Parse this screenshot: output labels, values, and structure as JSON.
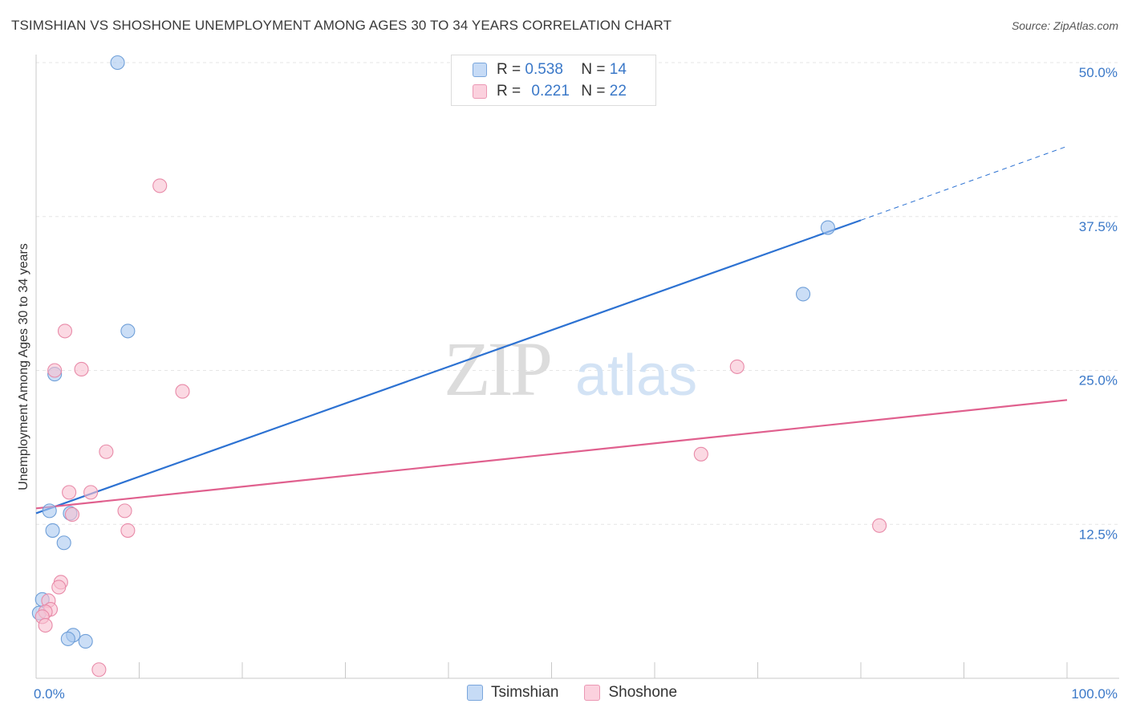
{
  "chart_data": {
    "type": "scatter",
    "title": "TSIMSHIAN VS SHOSHONE UNEMPLOYMENT AMONG AGES 30 TO 34 YEARS CORRELATION CHART",
    "source": "Source: ZipAtlas.com",
    "xlabel": "",
    "ylabel": "Unemployment Among Ages 30 to 34 years",
    "xlim": [
      0,
      100
    ],
    "ylim": [
      0,
      50
    ],
    "x_tick_labels": [
      "0.0%",
      "100.0%"
    ],
    "y_ticks": [
      12.5,
      25.0,
      37.5,
      50.0
    ],
    "y_tick_labels": [
      "12.5%",
      "25.0%",
      "37.5%",
      "50.0%"
    ],
    "grid": true,
    "watermark": "ZIPatlas",
    "legend": [
      {
        "name": "Tsimshian",
        "r_label": "R =",
        "r_value": "0.538",
        "n_label": "N =",
        "n_value": "14"
      },
      {
        "name": "Shoshone",
        "r_label": "R =",
        "r_value": "0.221",
        "n_label": "N =",
        "n_value": "22"
      }
    ],
    "series": [
      {
        "name": "Tsimshian",
        "color": "#a9c8f0",
        "edge": "#6f9fd8",
        "line_color": "#2d72d2",
        "trend": {
          "x0": 0,
          "y0": 13.4,
          "x1": 80,
          "y1": 37.2,
          "dash_to_x": 100,
          "dash_to_y": 43.2
        },
        "points": [
          {
            "x": 7.9,
            "y": 50.0
          },
          {
            "x": 8.9,
            "y": 28.2
          },
          {
            "x": 1.8,
            "y": 24.7
          },
          {
            "x": 76.8,
            "y": 36.6
          },
          {
            "x": 74.4,
            "y": 31.2
          },
          {
            "x": 1.3,
            "y": 13.6
          },
          {
            "x": 3.3,
            "y": 13.4
          },
          {
            "x": 1.6,
            "y": 12.0
          },
          {
            "x": 2.7,
            "y": 11.0
          },
          {
            "x": 0.6,
            "y": 6.4
          },
          {
            "x": 0.3,
            "y": 5.3
          },
          {
            "x": 3.6,
            "y": 3.5
          },
          {
            "x": 3.1,
            "y": 3.2
          },
          {
            "x": 4.8,
            "y": 3.0
          }
        ]
      },
      {
        "name": "Shoshone",
        "color": "#f8c0d0",
        "edge": "#e88aa8",
        "line_color": "#e0608e",
        "trend": {
          "x0": 0,
          "y0": 13.8,
          "x1": 100,
          "y1": 22.6
        },
        "points": [
          {
            "x": 12.0,
            "y": 40.0
          },
          {
            "x": 2.8,
            "y": 28.2
          },
          {
            "x": 1.8,
            "y": 25.0
          },
          {
            "x": 4.4,
            "y": 25.1
          },
          {
            "x": 14.2,
            "y": 23.3
          },
          {
            "x": 68.0,
            "y": 25.3
          },
          {
            "x": 6.8,
            "y": 18.4
          },
          {
            "x": 64.5,
            "y": 18.2
          },
          {
            "x": 3.2,
            "y": 15.1
          },
          {
            "x": 5.3,
            "y": 15.1
          },
          {
            "x": 3.5,
            "y": 13.3
          },
          {
            "x": 8.6,
            "y": 13.6
          },
          {
            "x": 8.9,
            "y": 12.0
          },
          {
            "x": 81.8,
            "y": 12.4
          },
          {
            "x": 2.4,
            "y": 7.8
          },
          {
            "x": 2.2,
            "y": 7.4
          },
          {
            "x": 1.2,
            "y": 6.3
          },
          {
            "x": 1.4,
            "y": 5.6
          },
          {
            "x": 0.9,
            "y": 5.4
          },
          {
            "x": 0.6,
            "y": 5.0
          },
          {
            "x": 0.9,
            "y": 4.3
          },
          {
            "x": 6.1,
            "y": 0.7
          }
        ]
      }
    ]
  }
}
